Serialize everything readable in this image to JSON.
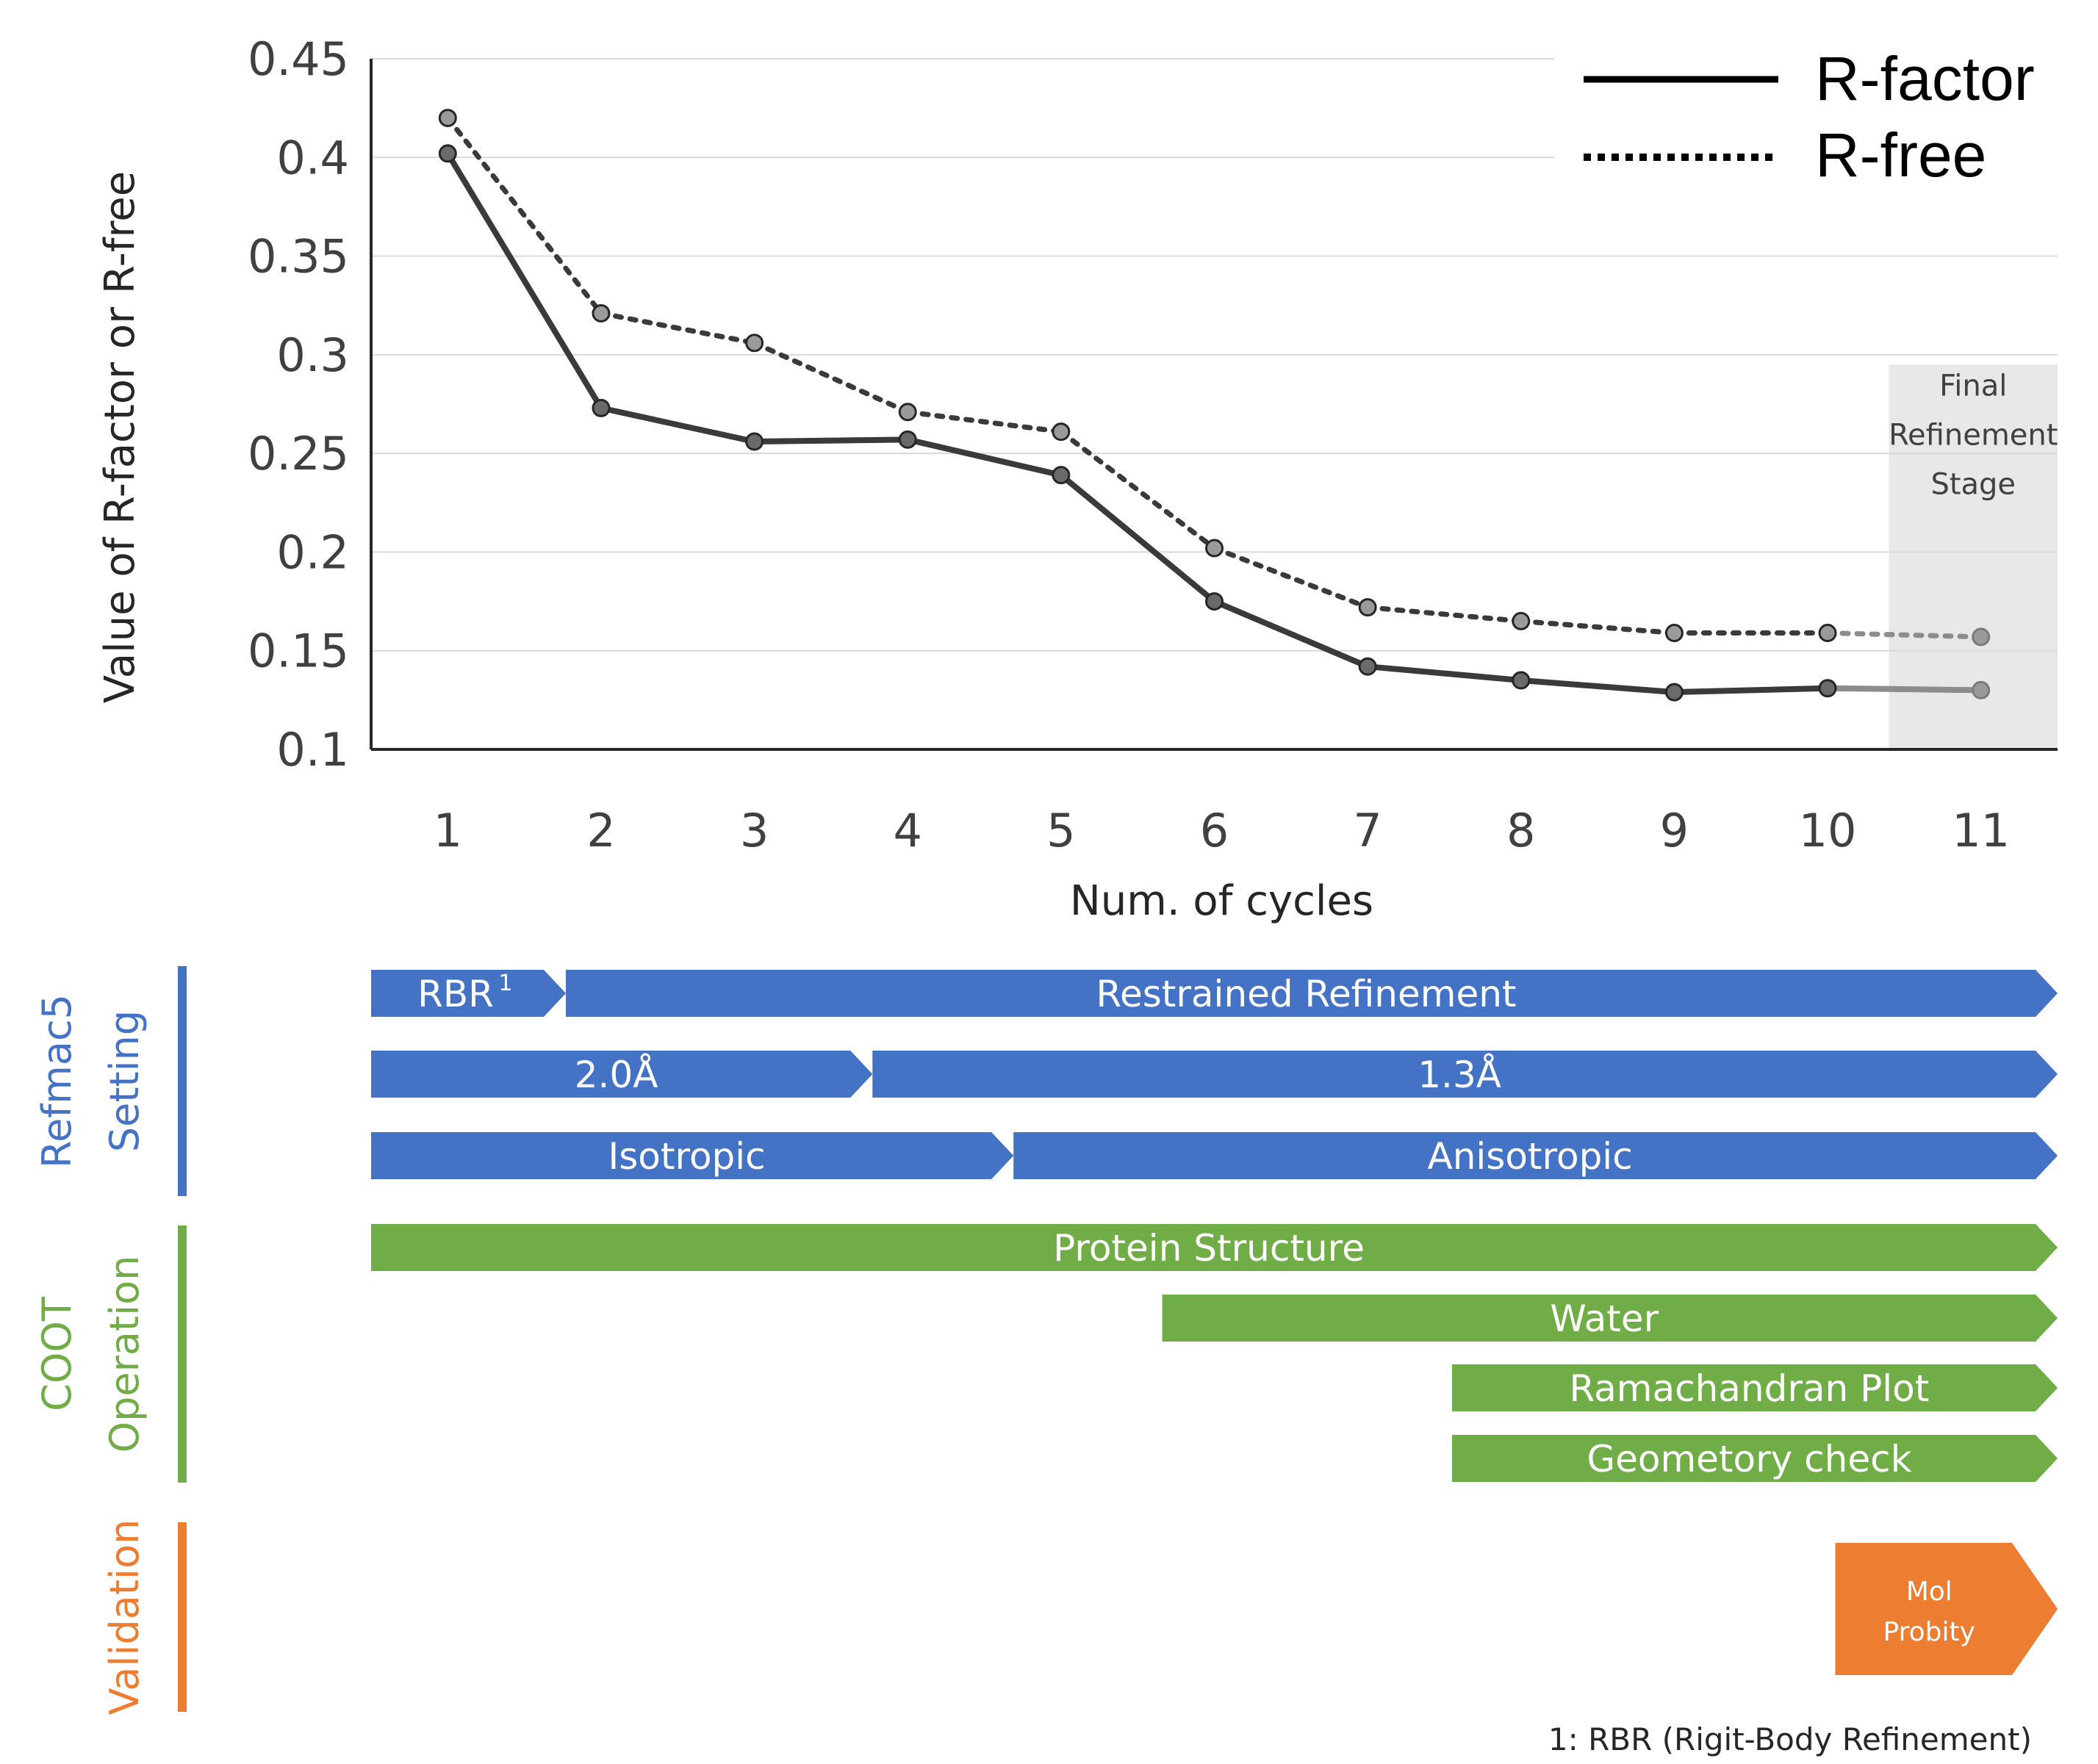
{
  "colors": {
    "blue": "#4472C4",
    "green": "#70AD47",
    "orange": "#ED7D31",
    "line_dark": "#3a3a3a",
    "marker_fill": "#7f7f7f",
    "band": "#e8e8e8",
    "grid": "#d9d9d9"
  },
  "chart_data": {
    "type": "line",
    "x": [
      1,
      2,
      3,
      4,
      5,
      6,
      7,
      8,
      9,
      10,
      11
    ],
    "xticks": [
      "1",
      "2",
      "3",
      "4",
      "5",
      "6",
      "7",
      "8",
      "9",
      "10",
      "11"
    ],
    "yticks": [
      "0.45",
      "0.4",
      "0.35",
      "0.3",
      "0.25",
      "0.2",
      "0.15",
      "0.1"
    ],
    "ytick_values": [
      0.45,
      0.4,
      0.35,
      0.3,
      0.25,
      0.2,
      0.15,
      0.1
    ],
    "ylim": [
      0.1,
      0.45
    ],
    "xlabel": "Num. of cycles",
    "ylabel": "Value of R-factor or R-free",
    "grid": "horizontal",
    "legend_position": "top-right",
    "series": [
      {
        "name": "R-factor",
        "style": "solid",
        "values": [
          0.402,
          0.273,
          0.256,
          0.257,
          0.239,
          0.175,
          0.142,
          0.135,
          0.129,
          0.131,
          0.13
        ]
      },
      {
        "name": "R-free",
        "style": "dotted",
        "values": [
          0.42,
          0.321,
          0.306,
          0.271,
          0.261,
          0.202,
          0.172,
          0.165,
          0.159,
          0.159,
          0.157
        ]
      }
    ],
    "band": {
      "label_lines": [
        "Final",
        "Refinement",
        "Stage"
      ],
      "x_range": [
        10.4,
        11.5
      ],
      "y_top": 0.295
    }
  },
  "timeline": {
    "lanes": [
      {
        "lines": [
          "Refmac5",
          "Setting"
        ],
        "color": "#4472C4"
      },
      {
        "lines": [
          "COOT",
          "Operation"
        ],
        "color": "#70AD47"
      },
      {
        "lines": [
          "Validation"
        ],
        "color": "#ED7D31"
      }
    ],
    "bars": [
      {
        "label": "RBR",
        "sup": "1",
        "row": 0,
        "start": 0.5,
        "end": 1.77,
        "color": "#4472C4"
      },
      {
        "label": "Restrained Refinement",
        "row": 0,
        "start": 1.77,
        "end": 11.5,
        "color": "#4472C4"
      },
      {
        "label": "2.0Å",
        "row": 1,
        "start": 0.5,
        "end": 3.77,
        "color": "#4472C4"
      },
      {
        "label": "1.3Å",
        "row": 1,
        "start": 3.77,
        "end": 11.5,
        "color": "#4472C4"
      },
      {
        "label": "Isotropic",
        "row": 2,
        "start": 0.5,
        "end": 4.69,
        "color": "#4472C4"
      },
      {
        "label": "Anisotropic",
        "row": 2,
        "start": 4.69,
        "end": 11.5,
        "color": "#4472C4"
      },
      {
        "label": "Protein Structure",
        "row": 3,
        "start": 0.5,
        "end": 11.5,
        "color": "#70AD47"
      },
      {
        "label": "Water",
        "row": 4,
        "start": 5.66,
        "end": 11.5,
        "color": "#70AD47"
      },
      {
        "label": "Ramachandran Plot",
        "row": 5,
        "start": 7.55,
        "end": 11.5,
        "color": "#70AD47"
      },
      {
        "label": "Geometory check",
        "row": 6,
        "start": 7.55,
        "end": 11.5,
        "color": "#70AD47"
      },
      {
        "label_lines": [
          "Mol",
          "Probity"
        ],
        "row": 7,
        "start": 10.05,
        "end": 11.5,
        "color": "#ED7D31"
      }
    ],
    "footnote": "1: RBR (Rigit-Body Refinement)"
  }
}
